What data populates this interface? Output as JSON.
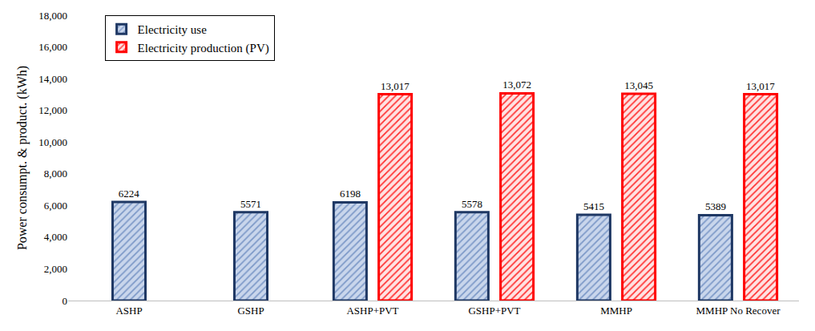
{
  "chart_data": {
    "type": "bar",
    "y_label": "Power consumpt. & product. (kWh)",
    "categories": [
      "ASHP",
      "GSHP",
      "ASHP+PVT",
      "GSHP+PVT",
      "MMHP",
      "MMHP No Recover"
    ],
    "series": [
      {
        "name": "Electricity use",
        "color": "#1f3864",
        "values": [
          6224,
          5571,
          6198,
          5578,
          5415,
          5389
        ]
      },
      {
        "name": "Electricity production (PV)",
        "color": "#ff0000",
        "values": [
          null,
          null,
          13017,
          13072,
          13045,
          13017
        ],
        "value_labels": [
          null,
          null,
          "13,017",
          "13,072",
          "13,045",
          "13,017"
        ]
      }
    ],
    "ylim": [
      0,
      18000
    ],
    "yticks": [
      0,
      {
        "value": 2000,
        "label": "2,000"
      },
      {
        "value": 4000,
        "label": "4,000"
      },
      {
        "value": 6000,
        "label": "6,000"
      },
      {
        "value": 8000,
        "label": "8,000"
      },
      {
        "value": 10000,
        "label": "10,000"
      },
      {
        "value": 12000,
        "label": "12,000"
      },
      {
        "value": 14000,
        "label": "14,000"
      },
      {
        "value": 16000,
        "label": "16,000"
      },
      {
        "value": 18000,
        "label": "18,000"
      }
    ],
    "grid": false,
    "legend": "upper left",
    "data_labels": true
  }
}
